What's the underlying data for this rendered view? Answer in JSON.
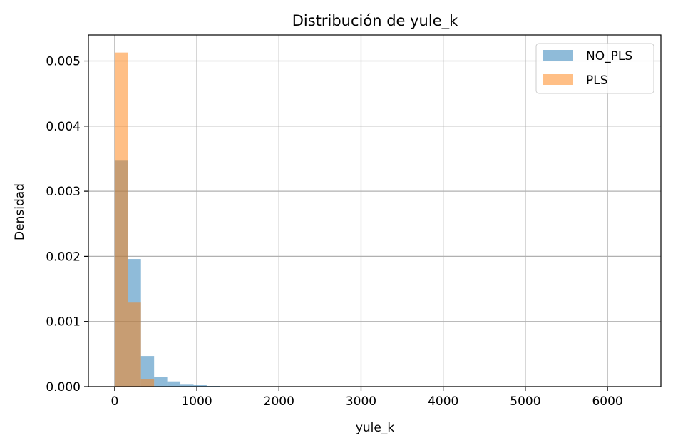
{
  "chart_data": {
    "type": "bar",
    "title": "Distribución de yule_k",
    "xlabel": "yule_k",
    "ylabel": "Densidad",
    "xlim": [
      -320,
      6650
    ],
    "ylim": [
      0,
      0.0054
    ],
    "xticks": [
      0,
      1000,
      2000,
      3000,
      4000,
      5000,
      6000
    ],
    "xtick_labels": [
      "0",
      "1000",
      "2000",
      "3000",
      "4000",
      "5000",
      "6000"
    ],
    "yticks": [
      0,
      0.001,
      0.002,
      0.003,
      0.004,
      0.005
    ],
    "ytick_labels": [
      "0.000",
      "0.001",
      "0.002",
      "0.003",
      "0.004",
      "0.005"
    ],
    "grid": true,
    "legend_position": "top-right",
    "series": [
      {
        "name": "NO_PLS",
        "color": "#1f77b4",
        "opacity": 0.5,
        "bin_edges": [
          0,
          160,
          320,
          480,
          640,
          800,
          960,
          1120,
          1280
        ],
        "values": [
          0.00348,
          0.00196,
          0.00047,
          0.00015,
          8e-05,
          4e-05,
          2.5e-05,
          1e-05
        ]
      },
      {
        "name": "PLS",
        "color": "#ff7f0e",
        "opacity": 0.5,
        "bin_edges": [
          0,
          160,
          320,
          480
        ],
        "values": [
          0.00513,
          0.00129,
          0.00012
        ]
      }
    ]
  }
}
